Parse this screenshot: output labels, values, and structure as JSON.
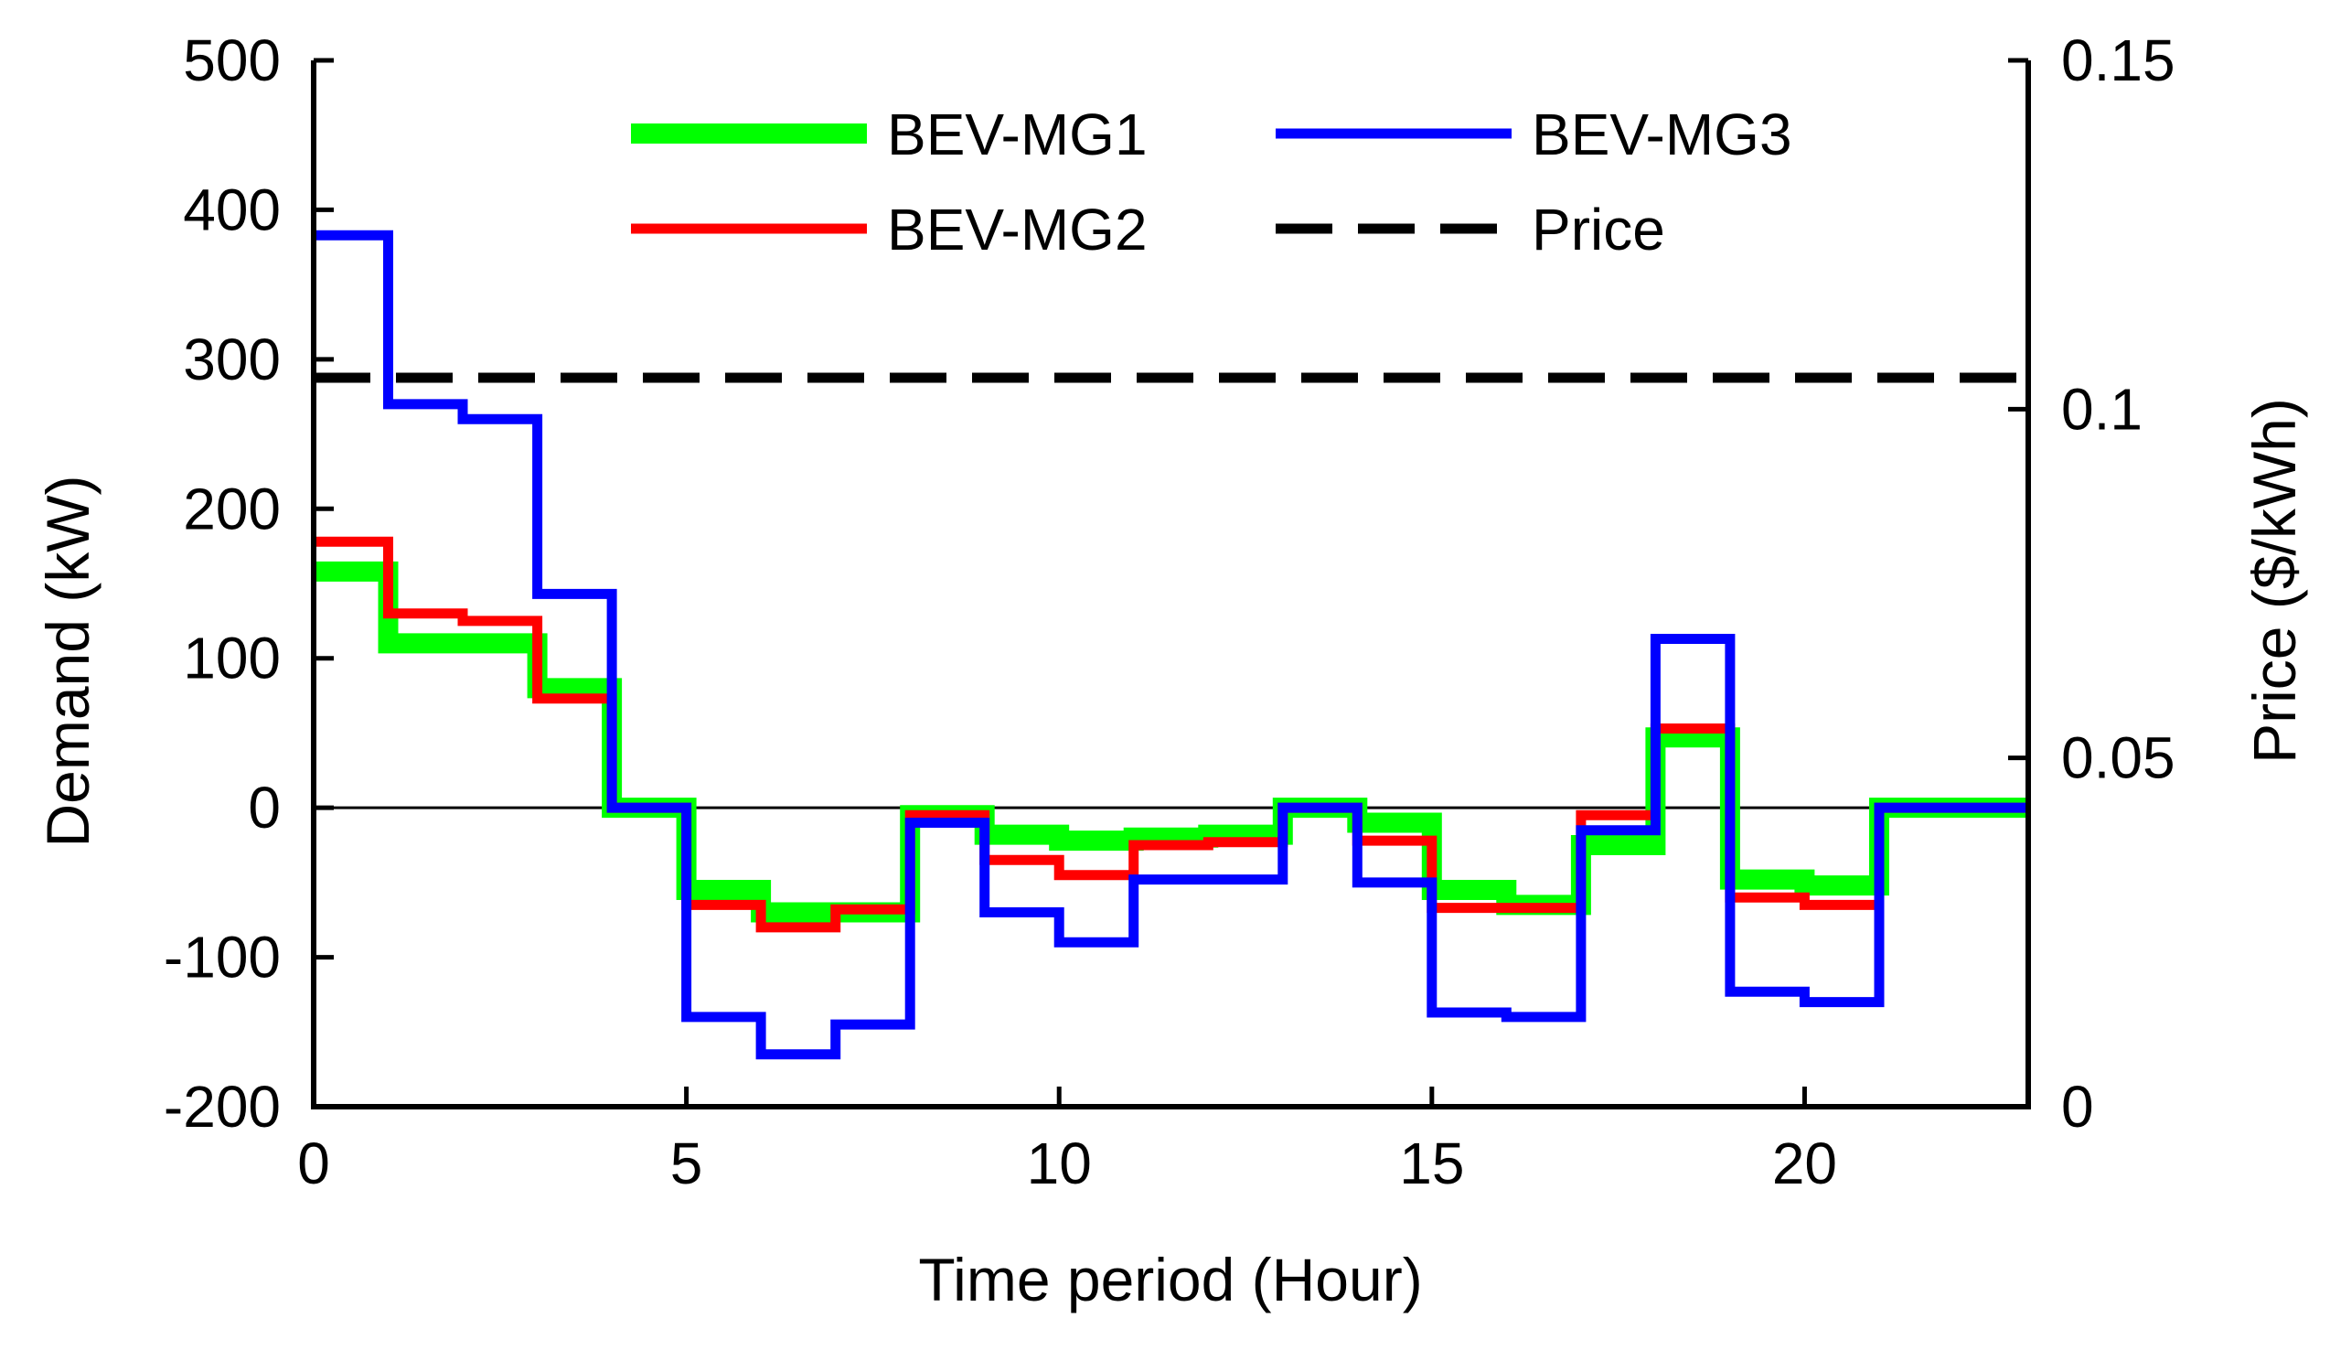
{
  "chart_data": {
    "type": "line",
    "subtype": "step",
    "xlabel": "Time period (Hour)",
    "ylabel": "Demand (kW)",
    "y2label": "Price ($/kWh)",
    "xlim": [
      0,
      23
    ],
    "ylim": [
      -200,
      500
    ],
    "y2lim": [
      0,
      0.15
    ],
    "xticks": [
      "0",
      "5",
      "10",
      "15",
      "20"
    ],
    "yticks": [
      "500",
      "400",
      "300",
      "200",
      "100",
      "0",
      "-100",
      "-200"
    ],
    "y2ticks": [
      "0.15",
      "0.1",
      "0.05",
      "0"
    ],
    "legend_position": "top-center",
    "zero_line": true,
    "series": [
      {
        "name": "BEV-MG1",
        "color": "#00ff00",
        "style": "solid-thick",
        "axis": "left",
        "values": [
          158,
          110,
          110,
          80,
          0,
          -55,
          -70,
          -70,
          -5,
          -18,
          -22,
          -20,
          -18,
          0,
          -10,
          -55,
          -65,
          -25,
          47,
          -48,
          -52,
          0,
          0
        ]
      },
      {
        "name": "BEV-MG2",
        "color": "#ff0000",
        "style": "solid",
        "axis": "left",
        "values": [
          178,
          130,
          125,
          73,
          0,
          -65,
          -80,
          -68,
          -5,
          -35,
          -45,
          -25,
          -23,
          0,
          -22,
          -67,
          -67,
          -5,
          53,
          -60,
          -65,
          0,
          0
        ]
      },
      {
        "name": "BEV-MG3",
        "color": "#0000ff",
        "style": "solid",
        "axis": "left",
        "values": [
          383,
          270,
          260,
          143,
          0,
          -140,
          -165,
          -145,
          -10,
          -70,
          -90,
          -48,
          -48,
          0,
          -50,
          -137,
          -140,
          -15,
          113,
          -123,
          -130,
          0,
          0
        ]
      },
      {
        "name": "Price",
        "color": "#000000",
        "style": "dashed",
        "axis": "right",
        "values": [
          0.1045,
          0.1045,
          0.1045,
          0.1045,
          0.1045,
          0.1045,
          0.1045,
          0.1045,
          0.1045,
          0.1045,
          0.1045,
          0.1045,
          0.1045,
          0.1045,
          0.1045,
          0.1045,
          0.1045,
          0.1045,
          0.1045,
          0.1045,
          0.1045,
          0.1045,
          0.1045
        ]
      }
    ]
  }
}
